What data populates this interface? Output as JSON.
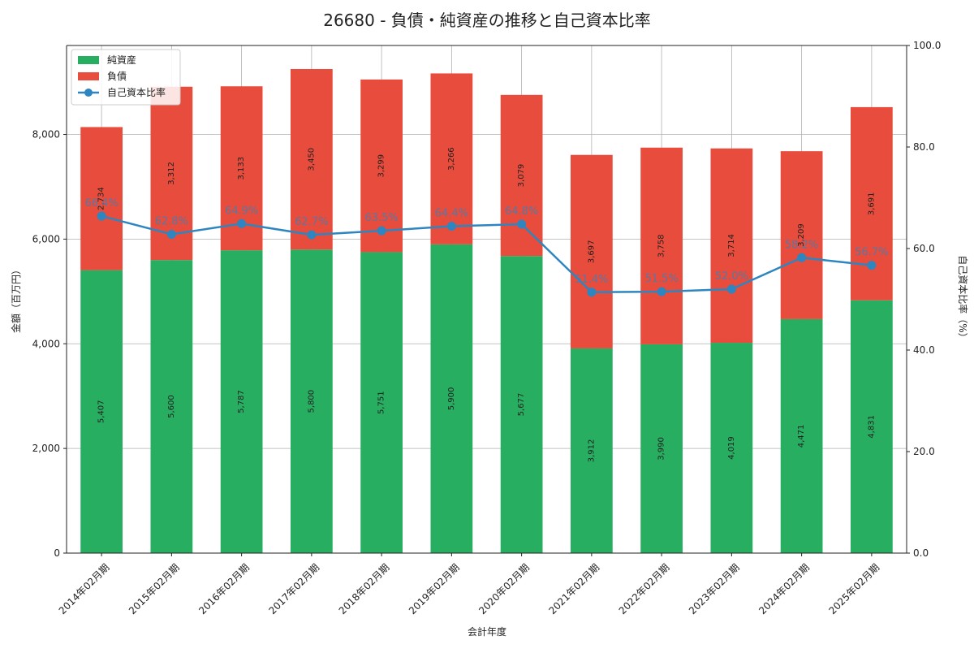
{
  "chart_data": {
    "type": "bar",
    "title": "26680 - 負債・純資産の推移と自己資本比率",
    "xlabel": "会計年度",
    "ylabel": "金額（百万円）",
    "y2label": "自己資本比率（%）",
    "categories": [
      "2014年02月期",
      "2015年02月期",
      "2016年02月期",
      "2017年02月期",
      "2018年02月期",
      "2019年02月期",
      "2020年02月期",
      "2021年02月期",
      "2022年02月期",
      "2023年02月期",
      "2024年02月期",
      "2025年02月期"
    ],
    "series": [
      {
        "name": "純資産",
        "kind": "bar",
        "stacked": true,
        "color": "#27ae60",
        "values": [
          5407,
          5600,
          5787,
          5800,
          5751,
          5900,
          5677,
          3912,
          3990,
          4019,
          4471,
          4831
        ],
        "labels": [
          "5,407",
          "5,600",
          "5,787",
          "5,800",
          "5,751",
          "5,900",
          "5,677",
          "3,912",
          "3,990",
          "4,019",
          "4,471",
          "4,831"
        ]
      },
      {
        "name": "負債",
        "kind": "bar",
        "stacked": true,
        "color": "#e74c3c",
        "values": [
          2734,
          3312,
          3133,
          3450,
          3299,
          3266,
          3079,
          3697,
          3758,
          3714,
          3209,
          3691
        ],
        "labels": [
          "2,734",
          "3,312",
          "3,133",
          "3,450",
          "3,299",
          "3,266",
          "3,079",
          "3,697",
          "3,758",
          "3,714",
          "3,209",
          "3,691"
        ]
      },
      {
        "name": "自己資本比率",
        "kind": "line",
        "axis": "right",
        "color": "#2e86c1",
        "values": [
          66.4,
          62.8,
          64.9,
          62.7,
          63.5,
          64.4,
          64.8,
          51.4,
          51.5,
          52.0,
          58.2,
          56.7
        ],
        "labels": [
          "66.4%",
          "62.8%",
          "64.9%",
          "62.7%",
          "63.5%",
          "64.4%",
          "64.8%",
          "51.4%",
          "51.5%",
          "52.0%",
          "58.2%",
          "56.7%"
        ]
      }
    ],
    "ylim": [
      0,
      9700
    ],
    "y2lim": [
      0,
      100
    ],
    "yticks": [
      0,
      2000,
      4000,
      6000,
      8000
    ],
    "ytick_labels": [
      "0",
      "2,000",
      "4,000",
      "6,000",
      "8,000"
    ],
    "y2ticks": [
      0,
      20,
      40,
      60,
      80,
      100
    ],
    "y2tick_labels": [
      "0.0",
      "20.0",
      "40.0",
      "60.0",
      "80.0",
      "100.0"
    ],
    "grid": true,
    "legend_position": "top-left"
  }
}
